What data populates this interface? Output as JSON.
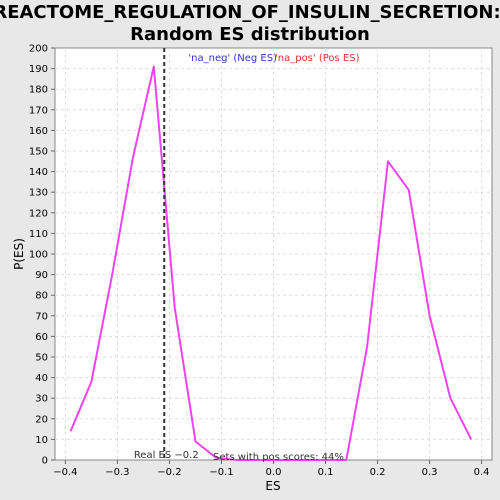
{
  "chart_data": {
    "type": "line",
    "title": "REACTOME_REGULATION_OF_INSULIN_SECRETION:",
    "subtitle": "Random ES distribution",
    "xlabel": "ES",
    "ylabel": "P(ES)",
    "xlim": [
      -0.42,
      0.42
    ],
    "ylim": [
      0,
      200
    ],
    "xticks": [
      -0.4,
      -0.3,
      -0.2,
      -0.1,
      0.0,
      0.1,
      0.2,
      0.3,
      0.4
    ],
    "xtick_labels": [
      "−0.4",
      "−0.3",
      "−0.2",
      "−0.1",
      "0.0",
      "0.1",
      "0.2",
      "0.3",
      "0.4"
    ],
    "yticks": [
      0,
      10,
      20,
      30,
      40,
      50,
      60,
      70,
      80,
      90,
      100,
      110,
      120,
      130,
      140,
      150,
      160,
      170,
      180,
      190,
      200
    ],
    "grid": true,
    "legend": [
      {
        "label": "'na_neg' (Neg ES)",
        "color": "#3333cc"
      },
      {
        "label": "'na_pos' (Pos ES)",
        "color": "#dd3333"
      }
    ],
    "series": [
      {
        "color": "#ee44ee",
        "x": [
          -0.39,
          -0.35,
          -0.31,
          -0.27,
          -0.23,
          -0.19,
          -0.15,
          -0.11,
          -0.07,
          -0.03,
          0.01,
          0.06,
          0.1,
          0.14,
          0.18,
          0.22,
          0.26,
          0.3,
          0.34,
          0.38
        ],
        "y": [
          14,
          38,
          90,
          147,
          191,
          74,
          9,
          1,
          0,
          0,
          0,
          0,
          0,
          0,
          55,
          145,
          131,
          70,
          30,
          10
        ]
      }
    ],
    "real_es": {
      "x": -0.21,
      "label": "Real ES −0.2"
    },
    "annotation": "Sets with pos scores: 44%"
  }
}
